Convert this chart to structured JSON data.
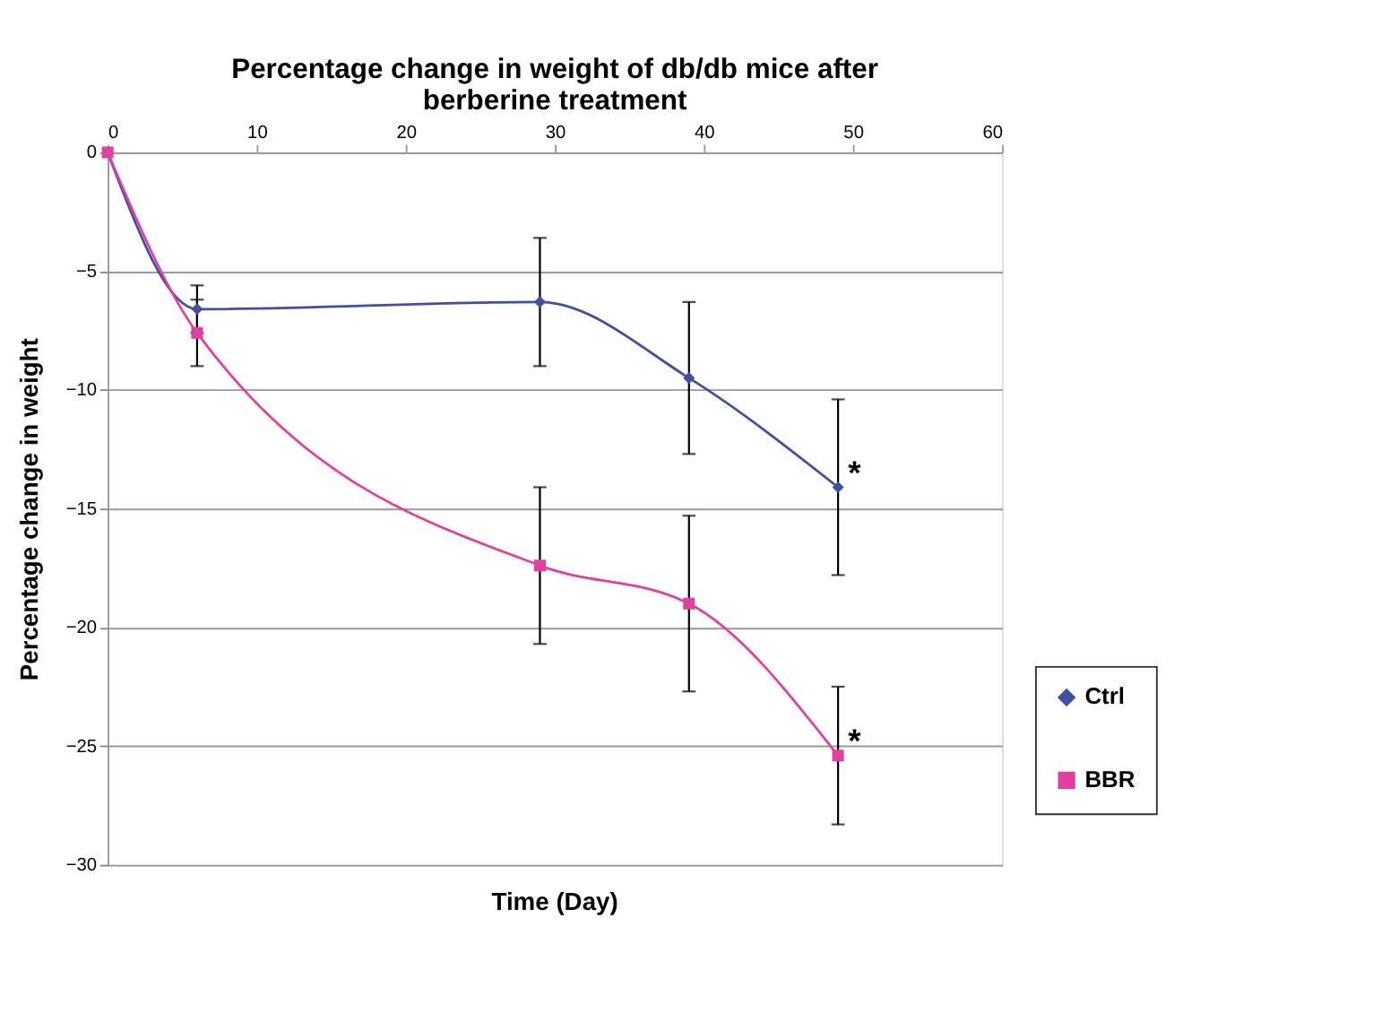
{
  "chart_data": {
    "type": "line",
    "title": [
      "Percentage change in weight of db/db mice after",
      "berberine treatment"
    ],
    "xlabel": "Time (Day)",
    "ylabel": "Percentage change in weight",
    "x": [
      0,
      6,
      29,
      39,
      49
    ],
    "series": [
      {
        "name": "Ctrl",
        "color": "#4050a0",
        "marker": "diamond",
        "values": [
          0,
          -6.6,
          -6.3,
          -9.5,
          -14.1
        ],
        "errors": [
          null,
          1.0,
          2.7,
          3.2,
          3.7
        ]
      },
      {
        "name": "BBR",
        "color": "#e040a0",
        "marker": "square",
        "values": [
          0,
          -7.6,
          -17.4,
          -19.0,
          -25.4
        ],
        "errors": [
          null,
          1.4,
          3.3,
          3.7,
          2.9
        ]
      }
    ],
    "xlim": [
      0,
      60
    ],
    "xticks": [
      0,
      10,
      20,
      30,
      40,
      50,
      60
    ],
    "ylim": [
      -30,
      0
    ],
    "yticks": [
      -30,
      -25,
      -20,
      -15,
      -10,
      -5,
      0
    ],
    "grid": "y",
    "legend": "bottom right",
    "line_style": "solid",
    "annotations": [
      {
        "text": "*",
        "x": 49,
        "y": -14.1
      },
      {
        "text": "*",
        "x": 49,
        "y": -25.4
      }
    ]
  }
}
